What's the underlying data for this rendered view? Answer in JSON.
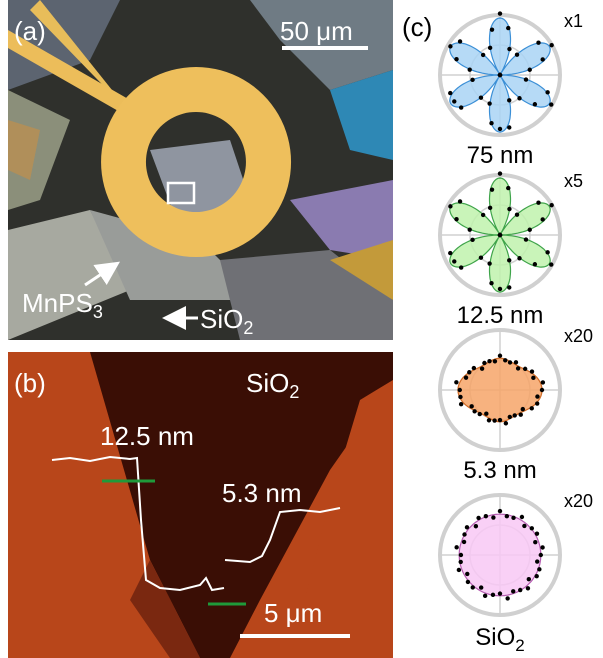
{
  "panels": {
    "a": {
      "label": "(a)",
      "scale_bar": "50 μm",
      "mnps": {
        "text": "MnPS",
        "sub": "3"
      },
      "sio2": {
        "text": "SiO",
        "sub": "2"
      }
    },
    "b": {
      "label": "(b)",
      "sio2": {
        "text": "SiO",
        "sub": "2"
      },
      "step1": "12.5 nm",
      "step2": "5.3 nm",
      "scale_bar": "5 μm"
    },
    "c": {
      "label": "(c)",
      "plots": [
        {
          "scale": "x1",
          "caption": "75 nm"
        },
        {
          "scale": "x5",
          "caption": "12.5 nm"
        },
        {
          "scale": "x20",
          "caption": "5.3 nm"
        },
        {
          "scale": "x20",
          "caption": {
            "text": "SiO",
            "sub": "2"
          }
        }
      ]
    }
  }
}
